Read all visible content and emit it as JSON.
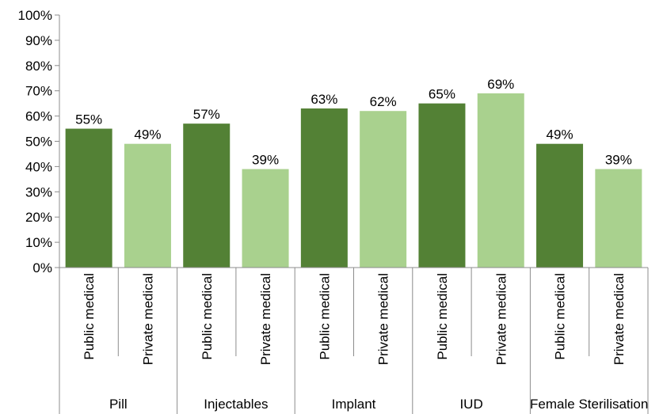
{
  "chart_data": {
    "type": "bar",
    "title": "",
    "xlabel": "",
    "ylabel": "",
    "ylim": [
      0,
      100
    ],
    "y_ticks": [
      "0%",
      "10%",
      "20%",
      "30%",
      "40%",
      "50%",
      "60%",
      "70%",
      "80%",
      "90%",
      "100%"
    ],
    "grid": false,
    "legend": "none",
    "groups": [
      "Pill",
      "Injectables",
      "Implant",
      "IUD",
      "Female Sterilisation"
    ],
    "categories": [
      "Public medical",
      "Private medical",
      "Public medical",
      "Private medical",
      "Public medical",
      "Private medical",
      "Public medical",
      "Private medical",
      "Public medical",
      "Private medical"
    ],
    "values": [
      55,
      49,
      57,
      39,
      63,
      62,
      65,
      69,
      49,
      39
    ],
    "value_labels": [
      "55%",
      "49%",
      "57%",
      "39%",
      "63%",
      "62%",
      "65%",
      "69%",
      "49%",
      "39%"
    ],
    "colors": {
      "Public medical": "#538135",
      "Private medical": "#A9D18E"
    }
  }
}
